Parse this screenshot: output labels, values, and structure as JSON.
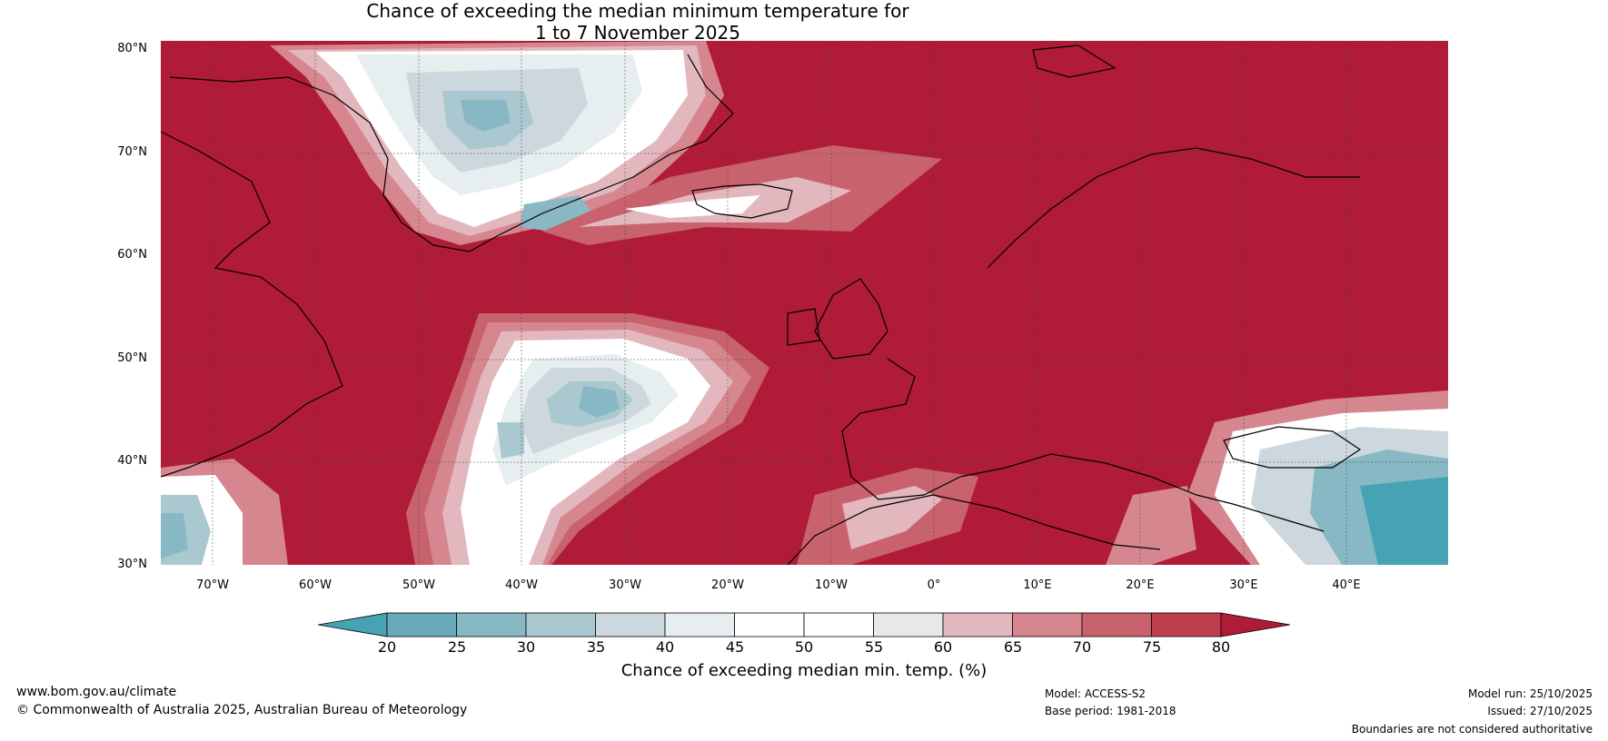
{
  "title": {
    "line1": "Chance of exceeding the median minimum temperature for",
    "line2": "1 to 7 November 2025"
  },
  "map": {
    "latitude_labels": [
      "80°N",
      "70°N",
      "60°N",
      "50°N",
      "40°N",
      "30°N"
    ],
    "longitude_labels": [
      "70°W",
      "60°W",
      "50°W",
      "40°W",
      "30°W",
      "20°W",
      "10°W",
      "0°",
      "10°E",
      "20°E",
      "30°E",
      "40°E"
    ],
    "colors": {
      "c_lt20": "#45a3b4",
      "c_20_25": "#68aab8",
      "c_25_30": "#89b8c5",
      "c_30_35": "#aac8d0",
      "c_35_40": "#ccd8dd",
      "c_40_45": "#e6eef0",
      "c_45_50": "#ffffff",
      "c_50_55": "#ffffff",
      "c_55_60": "#e8e8e8",
      "c_60_65": "#e2b7bd",
      "c_65_70": "#d6868f",
      "c_70_75": "#c8636e",
      "c_75_80": "#bf3e4e",
      "c_gt80": "#b01b37",
      "land_outline": "#000000",
      "border": "#808080"
    }
  },
  "colorbar": {
    "ticks": [
      "20",
      "25",
      "30",
      "35",
      "40",
      "45",
      "50",
      "55",
      "60",
      "65",
      "70",
      "75",
      "80"
    ],
    "label": "Chance of exceeding median min. temp. (%)"
  },
  "footer": {
    "website": "www.bom.gov.au/climate",
    "copyright": "© Commonwealth of Australia 2025, Australian Bureau of Meteorology",
    "model": "Model: ACCESS-S2",
    "base_period": "Base period: 1981-2018",
    "model_run": "Model run: 25/10/2025",
    "issued": "Issued: 27/10/2025",
    "disclaimer": "Boundaries are not considered authoritative"
  }
}
